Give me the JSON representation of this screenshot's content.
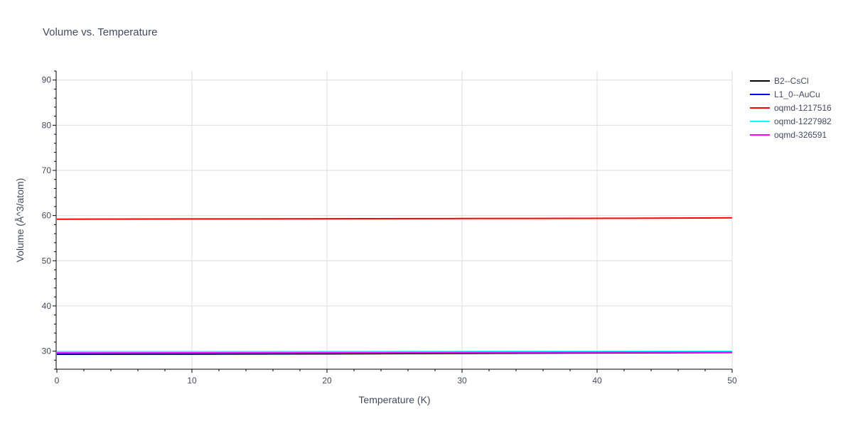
{
  "chart_data": {
    "type": "line",
    "title": "Volume vs. Temperature",
    "xlabel": "Temperature (K)",
    "ylabel": "Volume (Å^3/atom)",
    "xlim": [
      0,
      50
    ],
    "ylim": [
      26,
      92
    ],
    "x_ticks": [
      0,
      10,
      20,
      30,
      40,
      50
    ],
    "y_ticks": [
      30,
      40,
      50,
      60,
      70,
      80,
      90
    ],
    "grid": true,
    "legend_position": "top-right",
    "series": [
      {
        "name": "B2--CsCl",
        "color": "#000000",
        "x": [
          0,
          10,
          20,
          30,
          40,
          50
        ],
        "values": [
          29.3,
          29.35,
          29.4,
          29.5,
          29.6,
          29.7
        ]
      },
      {
        "name": "L1_0--AuCu",
        "color": "#0000ff",
        "x": [
          0,
          10,
          20,
          30,
          40,
          50
        ],
        "values": [
          29.5,
          29.55,
          29.6,
          29.65,
          29.7,
          29.8
        ]
      },
      {
        "name": "oqmd-1217516",
        "color": "#ff0000",
        "x": [
          0,
          10,
          20,
          30,
          40,
          50
        ],
        "values": [
          59.2,
          59.25,
          59.3,
          59.35,
          59.4,
          59.5
        ]
      },
      {
        "name": "oqmd-1227982",
        "color": "#00ffff",
        "x": [
          0,
          10,
          20,
          30,
          40,
          50
        ],
        "values": [
          29.8,
          29.82,
          29.85,
          29.88,
          29.92,
          29.95
        ]
      },
      {
        "name": "oqmd-326591",
        "color": "#ff00ff",
        "x": [
          0,
          10,
          20,
          30,
          40,
          50
        ],
        "values": [
          29.6,
          29.62,
          29.65,
          29.7,
          29.72,
          29.75
        ]
      }
    ]
  }
}
